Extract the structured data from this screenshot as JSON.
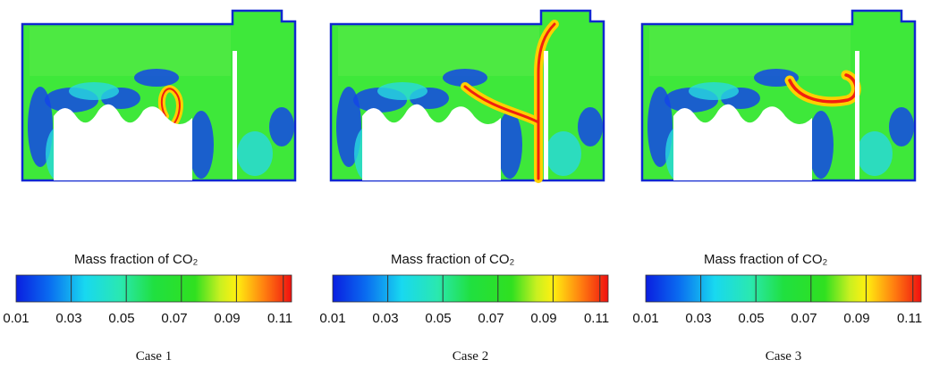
{
  "panels": [
    {
      "caption": "Case 1",
      "colorbar_title": "Mass fraction of CO₂",
      "ticks": [
        "0.01",
        "0.03",
        "0.05",
        "0.07",
        "0.09",
        "0.11"
      ]
    },
    {
      "caption": "Case 2",
      "colorbar_title": "Mass fraction of CO₂",
      "ticks": [
        "0.01",
        "0.03",
        "0.05",
        "0.07",
        "0.09",
        "0.11"
      ]
    },
    {
      "caption": "Case 3",
      "colorbar_title": "Mass fraction of CO₂",
      "ticks": [
        "0.01",
        "0.03",
        "0.05",
        "0.07",
        "0.09",
        "0.11"
      ]
    }
  ]
}
